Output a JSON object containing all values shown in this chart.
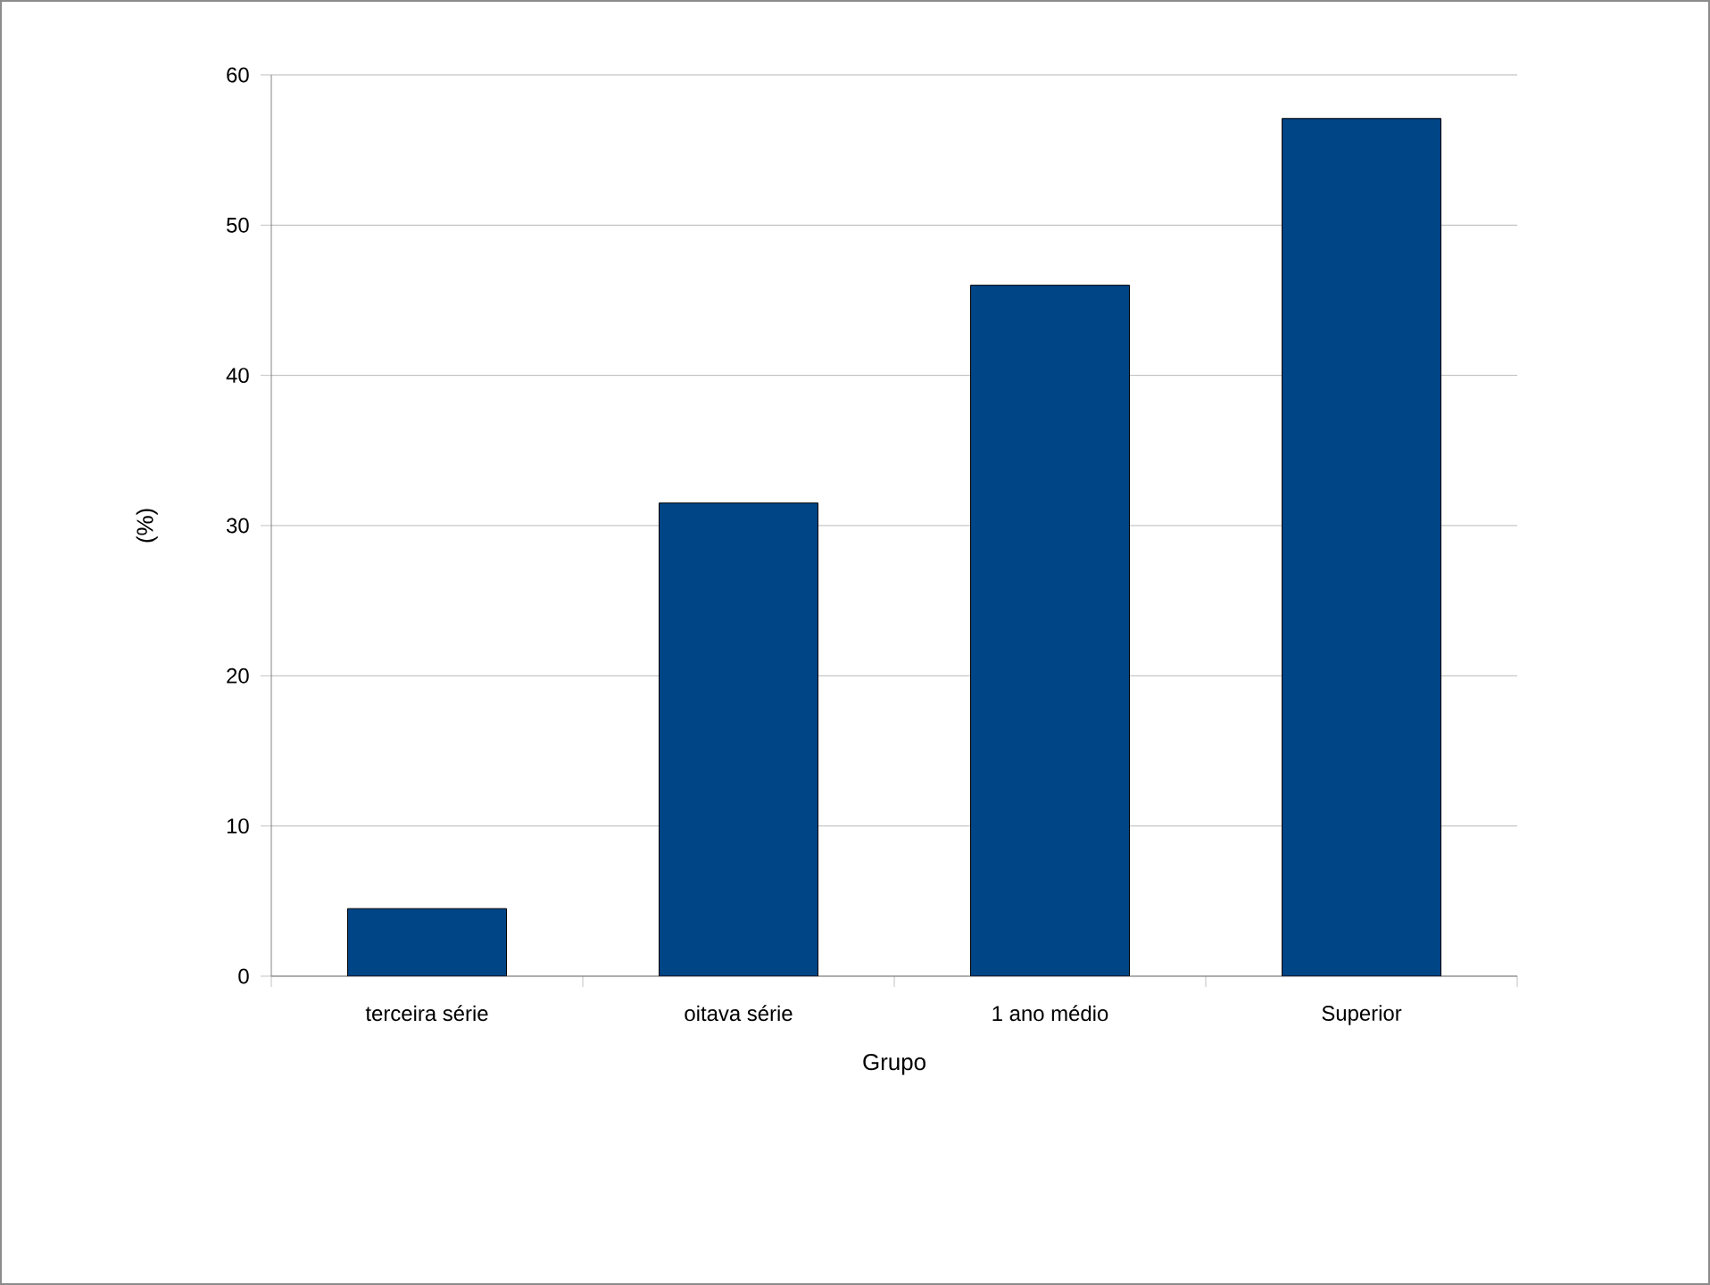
{
  "chart_data": {
    "type": "bar",
    "xlabel": "Grupo",
    "ylabel": "(%)",
    "categories": [
      "terceira série",
      "oitava série",
      "1 ano médio",
      "Superior"
    ],
    "values": [
      4.5,
      31.5,
      46.0,
      57.1
    ],
    "color": "#004586",
    "ylim": [
      0,
      60
    ],
    "yticks": [
      0,
      10,
      20,
      30,
      40,
      50,
      60
    ],
    "grid": "y"
  }
}
